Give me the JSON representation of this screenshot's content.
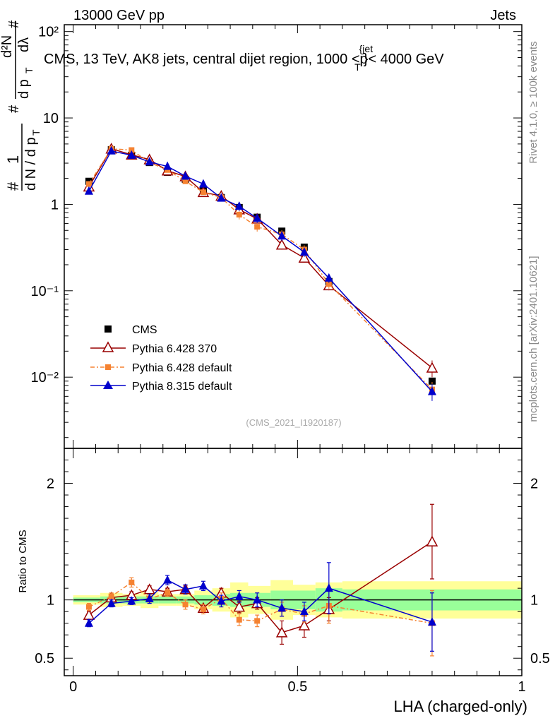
{
  "header": {
    "left": "13000 GeV pp",
    "right": "Jets"
  },
  "side_labels": {
    "rivet": "Rivet 4.1.0, ≥ 100k events",
    "mcplots": "mcplots.cern.ch [arXiv:2401.10621]"
  },
  "colors": {
    "cms": "#000000",
    "py6_370": "#990000",
    "py6_default": "#f58231",
    "py8": "#0000cc",
    "band_inner": "#99ff99",
    "band_outer": "#ffff99"
  },
  "chart_data": [
    {
      "type": "scatter",
      "title": "CMS, 13 TeV, AK8 jets, central dijet region, 1000 <p",
      "title_sup": "{jet",
      "title_sub": "T",
      "title_end": "}< 4000 GeV",
      "ylabel_parts": {
        "hash1": "#",
        "one": "1",
        "dN": "d N / d p",
        "T1": "T",
        "hash2": "#",
        "d2N": "d²N",
        "dpT": "d p",
        "T2": "T",
        "dlam": "dλ",
        "hash3": "#"
      },
      "yscale": "log",
      "ylim": [
        0.0015,
        120
      ],
      "xlim": [
        -0.02,
        1.0
      ],
      "ytick_labels": [
        "10⁻²",
        "10⁻¹",
        "1",
        "10",
        "10²"
      ],
      "watermark": "(CMS_2021_I1920187)",
      "legend_position": "center-left",
      "x": [
        0.035,
        0.085,
        0.13,
        0.17,
        0.21,
        0.25,
        0.29,
        0.33,
        0.37,
        0.41,
        0.465,
        0.515,
        0.57,
        0.8
      ],
      "series": [
        {
          "name": "CMS",
          "marker": "square",
          "values": [
            1.85,
            4.3,
            3.7,
            3.05,
            2.35,
            1.95,
            1.5,
            1.2,
            0.92,
            0.71,
            0.49,
            0.32,
            0.128,
            0.009
          ]
        },
        {
          "name": "Pythia 6.428 370",
          "marker": "open-triangle",
          "values": [
            1.6,
            4.4,
            3.75,
            3.3,
            2.45,
            2.1,
            1.38,
            1.25,
            0.87,
            0.68,
            0.34,
            0.24,
            0.115,
            0.0128
          ]
        },
        {
          "name": "Pythia 6.428 default",
          "marker": "small-square",
          "values": [
            1.72,
            4.4,
            4.25,
            3.05,
            2.5,
            1.85,
            1.38,
            1.2,
            0.76,
            0.55,
            0.45,
            0.3,
            0.12,
            0.0072
          ]
        },
        {
          "name": "Pythia 8.315 default",
          "marker": "triangle",
          "values": [
            1.42,
            4.15,
            3.7,
            3.1,
            2.75,
            2.12,
            1.72,
            1.18,
            0.95,
            0.69,
            0.43,
            0.28,
            0.14,
            0.0068
          ]
        }
      ]
    },
    {
      "type": "scatter",
      "ylabel": "Ratio to CMS",
      "xlabel": "LHA (charged-only)",
      "xlim": [
        -0.02,
        1.0
      ],
      "ylim": [
        0.35,
        2.3
      ],
      "xtick_labels": [
        "0",
        "0.5",
        "1"
      ],
      "ytick_labels": [
        "0.5",
        "1",
        "2"
      ],
      "x": [
        0.035,
        0.085,
        0.13,
        0.17,
        0.21,
        0.25,
        0.29,
        0.33,
        0.37,
        0.41,
        0.465,
        0.515,
        0.57,
        0.8
      ],
      "band_edges": [
        0.0,
        0.06,
        0.11,
        0.15,
        0.19,
        0.23,
        0.27,
        0.31,
        0.35,
        0.39,
        0.44,
        0.49,
        0.54,
        0.6,
        1.0
      ],
      "band_inner_halfwidth": [
        0.02,
        0.03,
        0.03,
        0.03,
        0.03,
        0.03,
        0.04,
        0.05,
        0.06,
        0.06,
        0.08,
        0.08,
        0.1,
        0.09
      ],
      "band_outer_halfwidth": [
        0.04,
        0.06,
        0.05,
        0.07,
        0.05,
        0.05,
        0.08,
        0.1,
        0.15,
        0.12,
        0.17,
        0.13,
        0.15,
        0.16
      ],
      "series": [
        {
          "name": "Pythia 6.428 370",
          "values": [
            0.87,
            1.02,
            1.04,
            1.09,
            1.07,
            1.09,
            0.93,
            1.06,
            0.94,
            0.97,
            0.72,
            0.78,
            0.92,
            1.5
          ],
          "errors": [
            0.03,
            0.03,
            0.03,
            0.03,
            0.03,
            0.03,
            0.03,
            0.04,
            0.05,
            0.05,
            0.1,
            0.1,
            0.1,
            0.32
          ]
        },
        {
          "name": "Pythia 6.428 default",
          "values": [
            0.94,
            1.03,
            1.15,
            1.01,
            1.06,
            0.96,
            0.92,
            1.01,
            0.83,
            0.82,
            0.92,
            0.88,
            0.95,
            0.8
          ],
          "errors": [
            0.03,
            0.03,
            0.04,
            0.03,
            0.03,
            0.04,
            0.04,
            0.05,
            0.05,
            0.05,
            0.06,
            0.07,
            0.15,
            0.28
          ]
        },
        {
          "name": "Pythia 8.315 default",
          "values": [
            0.8,
            0.97,
            0.99,
            1.01,
            1.17,
            1.09,
            1.12,
            0.99,
            1.03,
            1.0,
            0.93,
            0.9,
            1.1,
            0.81
          ],
          "errors": [
            0.03,
            0.03,
            0.03,
            0.04,
            0.04,
            0.04,
            0.04,
            0.05,
            0.05,
            0.06,
            0.07,
            0.08,
            0.22,
            0.25
          ]
        }
      ]
    }
  ]
}
